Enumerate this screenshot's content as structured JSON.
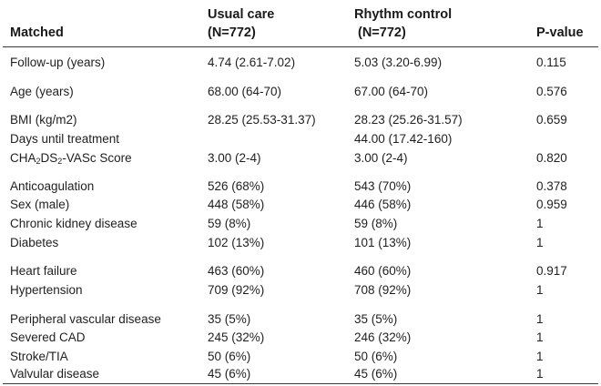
{
  "table": {
    "header": {
      "col0": "Matched",
      "col1_line1": "Usual care",
      "col1_line2": "(N=772)",
      "col2_line1": "Rhythm control",
      "col2_line2": "(N=772)",
      "col3": "P-value"
    },
    "rows": [
      {
        "label": "Follow-up (years)",
        "usual": "4.74 (2.61-7.02)",
        "rhythm": "5.03 (3.20-6.99)",
        "p": "0.115"
      },
      {
        "label": "Age (years)",
        "usual": "68.00 (64-70)",
        "rhythm": "67.00 (64-70)",
        "p": "0.576"
      },
      {
        "label": "BMI (kg/m2)",
        "usual": "28.25 (25.53-31.37)",
        "rhythm": "28.23 (25.26-31.57)",
        "p": "0.659"
      },
      {
        "label": "Days until treatment",
        "usual": "",
        "rhythm": "44.00 (17.42-160)",
        "p": ""
      },
      {
        "label_parts": [
          "CHA",
          "2",
          "DS",
          "2",
          "-VASc Score"
        ],
        "usual": "3.00 (2-4)",
        "rhythm": "3.00 (2-4)",
        "p": "0.820"
      },
      {
        "label": "Anticoagulation",
        "usual": "526 (68%)",
        "rhythm": "543 (70%)",
        "p": "0.378"
      },
      {
        "label": "Sex (male)",
        "usual": "448 (58%)",
        "rhythm": "446 (58%)",
        "p": "0.959"
      },
      {
        "label": "Chronic kidney disease",
        "usual": "59 (8%)",
        "rhythm": "59 (8%)",
        "p": "1"
      },
      {
        "label": "Diabetes",
        "usual": "102 (13%)",
        "rhythm": "101 (13%)",
        "p": "1"
      },
      {
        "label": "Heart failure",
        "usual": "463 (60%)",
        "rhythm": "460 (60%)",
        "p": "0.917"
      },
      {
        "label": "Hypertension",
        "usual": "709 (92%)",
        "rhythm": "708 (92%)",
        "p": "1"
      },
      {
        "label": "Peripheral vascular disease",
        "usual": "35 (5%)",
        "rhythm": "35 (5%)",
        "p": "1"
      },
      {
        "label": "Severed CAD",
        "usual": "245 (32%)",
        "rhythm": "246 (32%)",
        "p": "1"
      },
      {
        "label": "Stroke/TIA",
        "usual": "50 (6%)",
        "rhythm": "50 (6%)",
        "p": "1"
      },
      {
        "label": "Valvular disease",
        "usual": "45 (6%)",
        "rhythm": "45 (6%)",
        "p": "1"
      }
    ]
  }
}
